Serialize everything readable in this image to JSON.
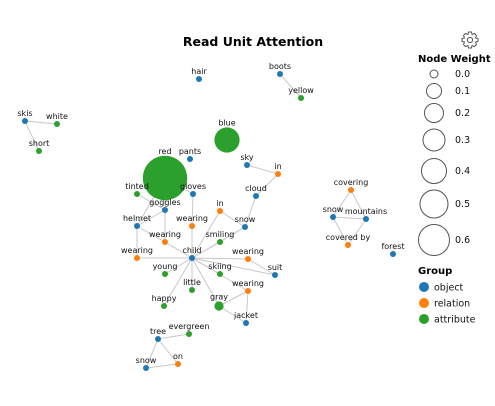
{
  "title": "Read Unit Attention",
  "colors": {
    "object": "#1f77b4",
    "relation": "#ff7f0e",
    "attribute": "#2ca02c"
  },
  "legend": {
    "weight_title": "Node Weight",
    "weights": [
      "0.0",
      "0.1",
      "0.2",
      "0.3",
      "0.4",
      "0.5",
      "0.6"
    ],
    "group_title": "Group",
    "groups": [
      {
        "label": "object",
        "group": "object"
      },
      {
        "label": "relation",
        "group": "relation"
      },
      {
        "label": "attribute",
        "group": "attribute"
      }
    ]
  },
  "toolbar": {
    "icon": "gear-icon"
  },
  "nodes": [
    {
      "id": "n1",
      "label": "hair",
      "group": "object",
      "weight": 0.0
    },
    {
      "id": "n2",
      "label": "boots",
      "group": "object",
      "weight": 0.0
    },
    {
      "id": "n3",
      "label": "yellow",
      "group": "attribute",
      "weight": 0.0
    },
    {
      "id": "n4",
      "label": "skis",
      "group": "object",
      "weight": 0.0
    },
    {
      "id": "n5",
      "label": "white",
      "group": "attribute",
      "weight": 0.0
    },
    {
      "id": "n6",
      "label": "short",
      "group": "attribute",
      "weight": 0.0
    },
    {
      "id": "n7",
      "label": "blue",
      "group": "attribute",
      "weight": 0.3
    },
    {
      "id": "n8",
      "label": "pants",
      "group": "object",
      "weight": 0.0
    },
    {
      "id": "n9",
      "label": "sky",
      "group": "object",
      "weight": 0.0
    },
    {
      "id": "n10",
      "label": "in",
      "group": "relation",
      "weight": 0.0
    },
    {
      "id": "n11",
      "label": "red",
      "group": "attribute",
      "weight": 0.6
    },
    {
      "id": "n12",
      "label": "tinted",
      "group": "attribute",
      "weight": 0.0
    },
    {
      "id": "n13",
      "label": "gloves",
      "group": "object",
      "weight": 0.0
    },
    {
      "id": "n14",
      "label": "cloud",
      "group": "object",
      "weight": 0.0
    },
    {
      "id": "n15",
      "label": "goggles",
      "group": "object",
      "weight": 0.0
    },
    {
      "id": "n16",
      "label": "helmet",
      "group": "object",
      "weight": 0.0
    },
    {
      "id": "n17",
      "label": "in",
      "group": "relation",
      "weight": 0.0
    },
    {
      "id": "n18",
      "label": "wearing",
      "group": "relation",
      "weight": 0.0
    },
    {
      "id": "n19",
      "label": "snow",
      "group": "object",
      "weight": 0.0
    },
    {
      "id": "n20",
      "label": "wearing",
      "group": "relation",
      "weight": 0.0
    },
    {
      "id": "n21",
      "label": "smiling",
      "group": "attribute",
      "weight": 0.0
    },
    {
      "id": "n22",
      "label": "wearing",
      "group": "relation",
      "weight": 0.0
    },
    {
      "id": "n23",
      "label": "child",
      "group": "object",
      "weight": 0.0
    },
    {
      "id": "n24",
      "label": "wearing",
      "group": "relation",
      "weight": 0.0
    },
    {
      "id": "n25",
      "label": "young",
      "group": "attribute",
      "weight": 0.0
    },
    {
      "id": "n26",
      "label": "skiing",
      "group": "attribute",
      "weight": 0.0
    },
    {
      "id": "n27",
      "label": "suit",
      "group": "object",
      "weight": 0.0
    },
    {
      "id": "n28",
      "label": "little",
      "group": "attribute",
      "weight": 0.0
    },
    {
      "id": "n29",
      "label": "wearing",
      "group": "relation",
      "weight": 0.0
    },
    {
      "id": "n30",
      "label": "happy",
      "group": "attribute",
      "weight": 0.0
    },
    {
      "id": "n31",
      "label": "gray",
      "group": "attribute",
      "weight": 0.05
    },
    {
      "id": "n32",
      "label": "jacket",
      "group": "object",
      "weight": 0.0
    },
    {
      "id": "n33",
      "label": "covering",
      "group": "relation",
      "weight": 0.0
    },
    {
      "id": "n34",
      "label": "snow",
      "group": "object",
      "weight": 0.0
    },
    {
      "id": "n35",
      "label": "mountains",
      "group": "object",
      "weight": 0.0
    },
    {
      "id": "n36",
      "label": "covered by",
      "group": "relation",
      "weight": 0.0
    },
    {
      "id": "n37",
      "label": "forest",
      "group": "object",
      "weight": 0.0
    },
    {
      "id": "n38",
      "label": "evergreen",
      "group": "attribute",
      "weight": 0.0
    },
    {
      "id": "n39",
      "label": "tree",
      "group": "object",
      "weight": 0.0
    },
    {
      "id": "n40",
      "label": "on",
      "group": "relation",
      "weight": 0.0
    },
    {
      "id": "n41",
      "label": "snow",
      "group": "object",
      "weight": 0.0
    }
  ],
  "edges": [
    [
      "n2",
      "n3"
    ],
    [
      "n4",
      "n5"
    ],
    [
      "n4",
      "n6"
    ],
    [
      "n9",
      "n10"
    ],
    [
      "n10",
      "n14"
    ],
    [
      "n14",
      "n19"
    ],
    [
      "n11",
      "n16"
    ],
    [
      "n11",
      "n13"
    ],
    [
      "n11",
      "n15"
    ],
    [
      "n12",
      "n15"
    ],
    [
      "n15",
      "n16"
    ],
    [
      "n15",
      "n18"
    ],
    [
      "n16",
      "n18"
    ],
    [
      "n16",
      "n22"
    ],
    [
      "n13",
      "n20"
    ],
    [
      "n17",
      "n19"
    ],
    [
      "n17",
      "n23"
    ],
    [
      "n18",
      "n23"
    ],
    [
      "n20",
      "n23"
    ],
    [
      "n22",
      "n23"
    ],
    [
      "n19",
      "n23"
    ],
    [
      "n21",
      "n23"
    ],
    [
      "n23",
      "n24"
    ],
    [
      "n24",
      "n27"
    ],
    [
      "n23",
      "n25"
    ],
    [
      "n23",
      "n26"
    ],
    [
      "n23",
      "n27"
    ],
    [
      "n23",
      "n28"
    ],
    [
      "n23",
      "n29"
    ],
    [
      "n23",
      "n30"
    ],
    [
      "n23",
      "n31"
    ],
    [
      "n29",
      "n32"
    ],
    [
      "n31",
      "n32"
    ],
    [
      "n29",
      "n31"
    ],
    [
      "n19",
      "n21"
    ],
    [
      "n33",
      "n34"
    ],
    [
      "n33",
      "n35"
    ],
    [
      "n34",
      "n36"
    ],
    [
      "n35",
      "n36"
    ],
    [
      "n34",
      "n35"
    ],
    [
      "n38",
      "n39"
    ],
    [
      "n39",
      "n40"
    ],
    [
      "n40",
      "n41"
    ],
    [
      "n39",
      "n41"
    ]
  ]
}
